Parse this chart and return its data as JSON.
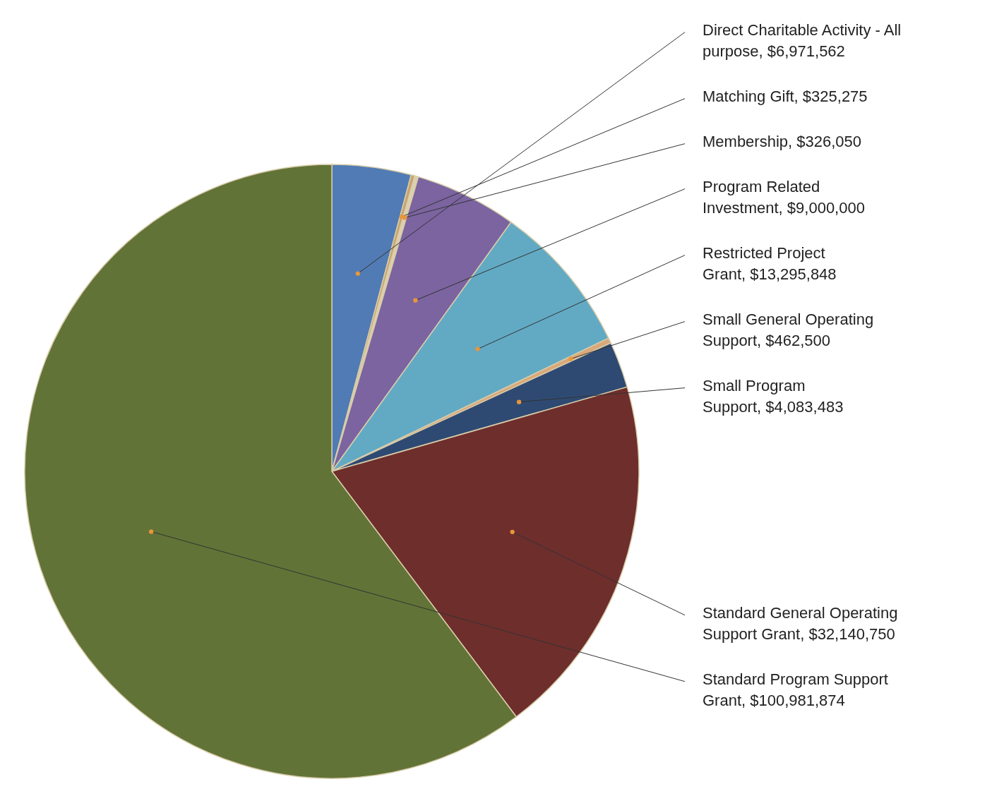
{
  "chart_data": {
    "type": "pie",
    "categories": [
      "Direct Charitable Activity - All purpose",
      "Matching Gift",
      "Membership",
      "Program Related Investment",
      "Restricted Project Grant",
      "Small General Operating Support",
      "Small Program Support",
      "Standard General Operating Support Grant",
      "Standard Program Support Grant"
    ],
    "values": [
      6971562,
      325275,
      326050,
      9000000,
      13295848,
      462500,
      4083483,
      32140750,
      100981874
    ],
    "value_labels": [
      "$6,971,562",
      "$325,275",
      "$326,050",
      "$9,000,000",
      "$13,295,848",
      "$462,500",
      "$4,083,483",
      "$32,140,750",
      "$100,981,874"
    ],
    "colors": [
      "#517bb5",
      "#c9a46e",
      "#ddd0ae",
      "#7b64a0",
      "#62aac4",
      "#d9a87a",
      "#2f4a72",
      "#6e2e2c",
      "#627337"
    ]
  }
}
